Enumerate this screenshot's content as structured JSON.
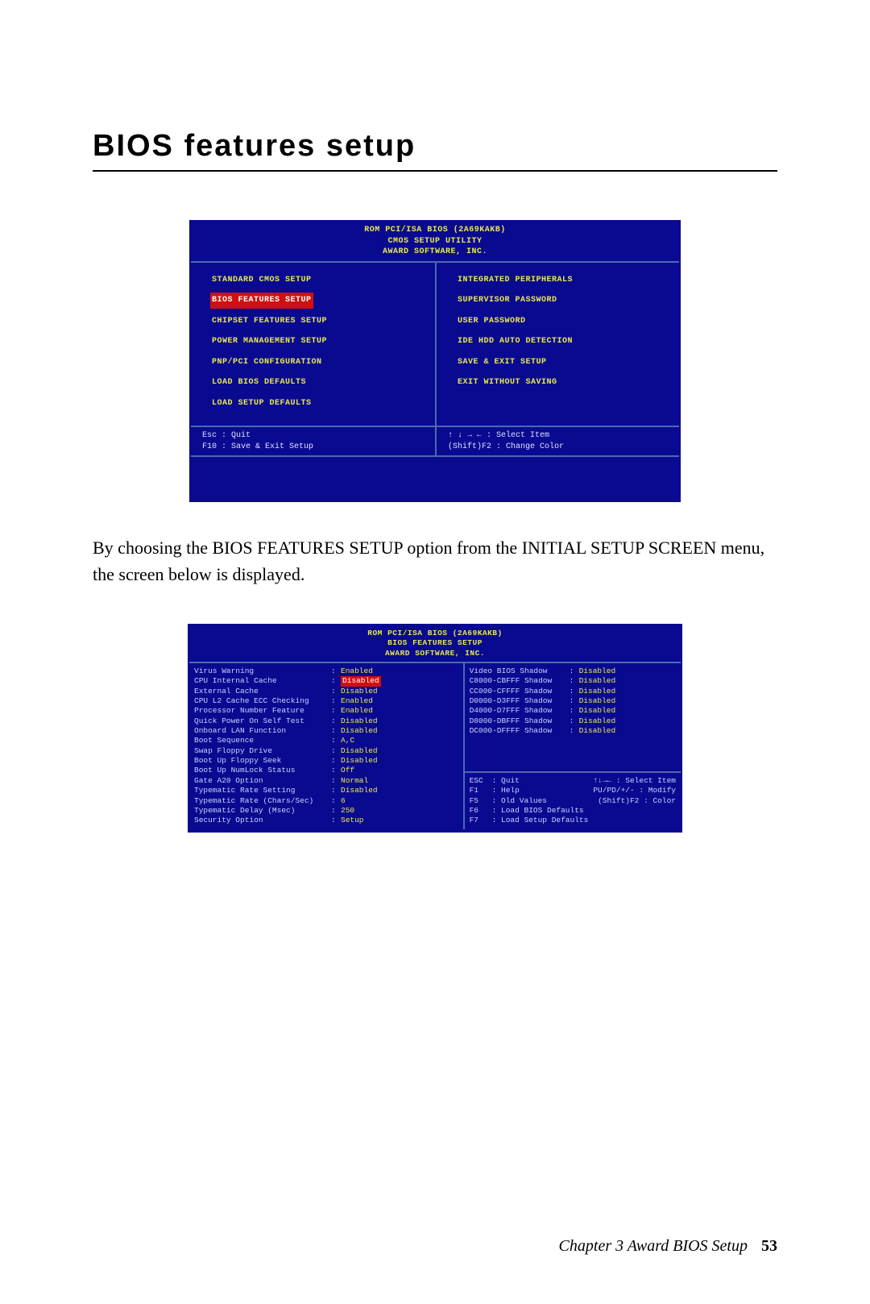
{
  "page": {
    "title": "BIOS features setup",
    "body_text": "By choosing the BIOS FEATURES SETUP option from the INITIAL SETUP SCREEN menu, the screen below is displayed.",
    "footer_chapter": "Chapter 3  Award BIOS Setup",
    "footer_page": "53"
  },
  "colors": {
    "bios_bg": "#0a0a90",
    "bios_yellow": "#e8e850",
    "bios_border": "#4a6ab0",
    "bios_selected_bg": "#d01010",
    "bios_text_light": "#c8d0ff"
  },
  "bios1": {
    "header1": "ROM PCI/ISA BIOS (2A69KAKB)",
    "header2": "CMOS SETUP UTILITY",
    "header3": "AWARD SOFTWARE, INC.",
    "left_menu": [
      "STANDARD CMOS SETUP",
      "BIOS FEATURES SETUP",
      "CHIPSET FEATURES SETUP",
      "POWER MANAGEMENT SETUP",
      "PNP/PCI CONFIGURATION",
      "LOAD BIOS DEFAULTS",
      "LOAD SETUP DEFAULTS"
    ],
    "right_menu": [
      "INTEGRATED PERIPHERALS",
      "SUPERVISOR PASSWORD",
      "USER PASSWORD",
      "IDE HDD AUTO DETECTION",
      "SAVE & EXIT SETUP",
      "EXIT WITHOUT SAVING"
    ],
    "selected_index": 1,
    "footer_left1": "Esc : Quit",
    "footer_left2": "F10 : Save & Exit Setup",
    "footer_right1": "↑ ↓ → ←   : Select Item",
    "footer_right2": "(Shift)F2 : Change Color"
  },
  "bios2": {
    "header1": "ROM PCI/ISA BIOS (2A69KAKB)",
    "header2": "BIOS FEATURES SETUP",
    "header3": "AWARD SOFTWARE, INC.",
    "left_settings": [
      {
        "label": "Virus Warning",
        "value": "Enabled"
      },
      {
        "label": "CPU Internal Cache",
        "value": "Disabled",
        "selected": true
      },
      {
        "label": "External Cache",
        "value": "Disabled"
      },
      {
        "label": "CPU L2 Cache ECC Checking",
        "value": "Enabled"
      },
      {
        "label": "Processor Number Feature",
        "value": "Enabled"
      },
      {
        "label": "Quick Power On Self Test",
        "value": "Disabled"
      },
      {
        "label": "Onboard LAN Function",
        "value": "Disabled"
      },
      {
        "label": "Boot Sequence",
        "value": "A,C"
      },
      {
        "label": "Swap Floppy Drive",
        "value": "Disabled"
      },
      {
        "label": "Boot Up Floppy Seek",
        "value": "Disabled"
      },
      {
        "label": "Boot Up NumLock Status",
        "value": "Off"
      },
      {
        "label": "Gate A20 Option",
        "value": "Normal"
      },
      {
        "label": "Typematic Rate Setting",
        "value": "Disabled"
      },
      {
        "label": "Typematic Rate (Chars/Sec)",
        "value": "6"
      },
      {
        "label": "Typematic Delay (Msec)",
        "value": "250"
      },
      {
        "label": "Security Option",
        "value": "Setup"
      }
    ],
    "right_settings": [
      {
        "label": "Video  BIOS Shadow",
        "value": "Disabled"
      },
      {
        "label": "C8000-CBFFF Shadow",
        "value": "Disabled"
      },
      {
        "label": "CC000-CFFFF Shadow",
        "value": "Disabled"
      },
      {
        "label": "D0000-D3FFF Shadow",
        "value": "Disabled"
      },
      {
        "label": "D4000-D7FFF Shadow",
        "value": "Disabled"
      },
      {
        "label": "D8000-DBFFF Shadow",
        "value": "Disabled"
      },
      {
        "label": "DC000-DFFFF Shadow",
        "value": "Disabled"
      }
    ],
    "help": [
      {
        "k": "ESC",
        "t": ": Quit",
        "r": "↑↓→← : Select Item"
      },
      {
        "k": "F1",
        "t": ": Help",
        "r": "PU/PD/+/- : Modify"
      },
      {
        "k": "F5",
        "t": ": Old Values",
        "r": "(Shift)F2 : Color"
      },
      {
        "k": "F6",
        "t": ": Load BIOS  Defaults",
        "r": ""
      },
      {
        "k": "F7",
        "t": ": Load Setup Defaults",
        "r": ""
      }
    ]
  }
}
